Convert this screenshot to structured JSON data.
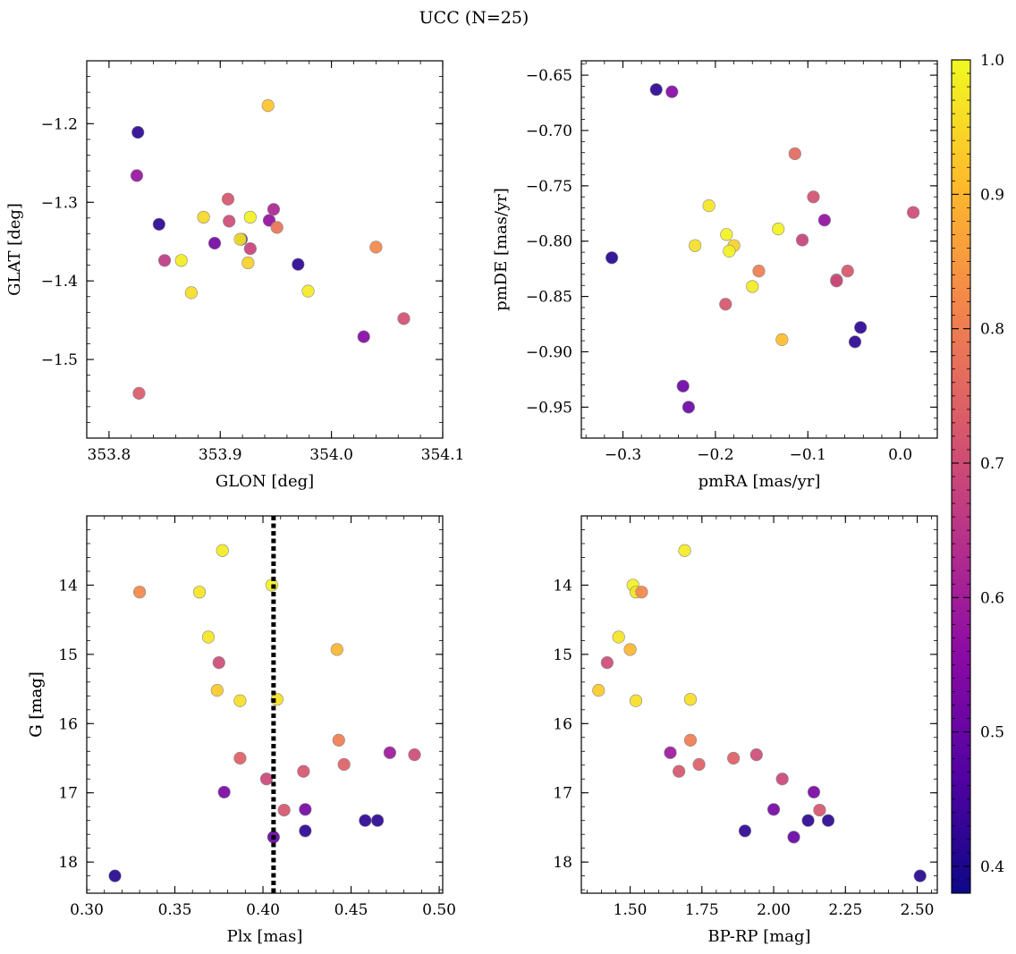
{
  "figure": {
    "title": "UCC (N=25)"
  },
  "colorbar": {
    "range": [
      0.38,
      1.0
    ],
    "ticks": [
      "0.4",
      "0.5",
      "0.6",
      "0.7",
      "0.8",
      "0.9",
      "1.0"
    ],
    "colormap": "plasma"
  },
  "chart_data": [
    {
      "type": "scatter",
      "panel": "top-left",
      "xlabel": "GLON [deg]",
      "ylabel": "GLAT [deg]",
      "xlim": [
        353.78,
        354.1
      ],
      "ylim": [
        -1.6,
        -1.12
      ],
      "xticks": [
        "353.8",
        "353.9",
        "354.0",
        "354.1"
      ],
      "yticks": [
        "−1.2",
        "−1.3",
        "−1.4",
        "−1.5"
      ],
      "points": [
        {
          "x": 353.943,
          "y": -1.177,
          "c": 0.92
        },
        {
          "x": 353.826,
          "y": -1.211,
          "c": 0.42
        },
        {
          "x": 353.825,
          "y": -1.266,
          "c": 0.58
        },
        {
          "x": 353.907,
          "y": -1.296,
          "c": 0.72
        },
        {
          "x": 353.948,
          "y": -1.309,
          "c": 0.62
        },
        {
          "x": 353.885,
          "y": -1.319,
          "c": 0.95
        },
        {
          "x": 353.927,
          "y": -1.319,
          "c": 0.99
        },
        {
          "x": 353.944,
          "y": -1.323,
          "c": 0.57
        },
        {
          "x": 353.908,
          "y": -1.324,
          "c": 0.7
        },
        {
          "x": 353.845,
          "y": -1.328,
          "c": 0.42
        },
        {
          "x": 353.951,
          "y": -1.332,
          "c": 0.78
        },
        {
          "x": 353.919,
          "y": -1.347,
          "c": 0.42
        },
        {
          "x": 353.918,
          "y": -1.347,
          "c": 0.97
        },
        {
          "x": 353.895,
          "y": -1.352,
          "c": 0.52
        },
        {
          "x": 354.04,
          "y": -1.357,
          "c": 0.82
        },
        {
          "x": 353.927,
          "y": -1.359,
          "c": 0.68
        },
        {
          "x": 353.85,
          "y": -1.374,
          "c": 0.66
        },
        {
          "x": 353.865,
          "y": -1.374,
          "c": 0.98
        },
        {
          "x": 353.925,
          "y": -1.377,
          "c": 0.94
        },
        {
          "x": 353.97,
          "y": -1.379,
          "c": 0.42
        },
        {
          "x": 353.979,
          "y": -1.413,
          "c": 0.98
        },
        {
          "x": 353.874,
          "y": -1.415,
          "c": 0.96
        },
        {
          "x": 354.065,
          "y": -1.448,
          "c": 0.71
        },
        {
          "x": 354.029,
          "y": -1.471,
          "c": 0.55
        },
        {
          "x": 353.827,
          "y": -1.543,
          "c": 0.73
        }
      ]
    },
    {
      "type": "scatter",
      "panel": "top-right",
      "xlabel": "pmRA [mas/yr]",
      "ylabel": "pmDE [mas/yr]",
      "xlim": [
        -0.345,
        0.04
      ],
      "ylim": [
        -0.978,
        -0.637
      ],
      "xticks": [
        "−0.3",
        "−0.2",
        "−0.1",
        "0.0"
      ],
      "yticks": [
        "−0.65",
        "−0.70",
        "−0.75",
        "−0.80",
        "−0.85",
        "−0.90",
        "−0.95"
      ],
      "points": [
        {
          "x": -0.264,
          "y": -0.663,
          "c": 0.42
        },
        {
          "x": -0.247,
          "y": -0.665,
          "c": 0.55
        },
        {
          "x": -0.114,
          "y": -0.721,
          "c": 0.76
        },
        {
          "x": -0.094,
          "y": -0.76,
          "c": 0.71
        },
        {
          "x": -0.207,
          "y": -0.768,
          "c": 0.97
        },
        {
          "x": 0.014,
          "y": -0.774,
          "c": 0.7
        },
        {
          "x": -0.082,
          "y": -0.781,
          "c": 0.57
        },
        {
          "x": -0.132,
          "y": -0.789,
          "c": 0.99
        },
        {
          "x": -0.188,
          "y": -0.794,
          "c": 0.99
        },
        {
          "x": -0.106,
          "y": -0.799,
          "c": 0.68
        },
        {
          "x": -0.18,
          "y": -0.804,
          "c": 0.94
        },
        {
          "x": -0.222,
          "y": -0.804,
          "c": 0.96
        },
        {
          "x": -0.185,
          "y": -0.809,
          "c": 0.99
        },
        {
          "x": -0.312,
          "y": -0.815,
          "c": 0.41
        },
        {
          "x": -0.153,
          "y": -0.827,
          "c": 0.8
        },
        {
          "x": -0.057,
          "y": -0.827,
          "c": 0.72
        },
        {
          "x": -0.069,
          "y": -0.835,
          "c": 0.73
        },
        {
          "x": -0.069,
          "y": -0.836,
          "c": 0.69
        },
        {
          "x": -0.16,
          "y": -0.841,
          "c": 0.98
        },
        {
          "x": -0.189,
          "y": -0.857,
          "c": 0.72
        },
        {
          "x": -0.043,
          "y": -0.878,
          "c": 0.42
        },
        {
          "x": -0.128,
          "y": -0.889,
          "c": 0.91
        },
        {
          "x": -0.049,
          "y": -0.891,
          "c": 0.42
        },
        {
          "x": -0.235,
          "y": -0.931,
          "c": 0.51
        },
        {
          "x": -0.229,
          "y": -0.95,
          "c": 0.51
        }
      ]
    },
    {
      "type": "scatter",
      "panel": "bottom-left",
      "xlabel": "Plx [mas]",
      "ylabel": "G [mag]",
      "xlim": [
        0.3,
        0.502
      ],
      "ylim": [
        18.45,
        13.0
      ],
      "y_inverted": true,
      "vline": 0.406,
      "xticks": [
        "0.30",
        "0.35",
        "0.40",
        "0.45",
        "0.50"
      ],
      "yticks": [
        "14",
        "15",
        "16",
        "17",
        "18"
      ],
      "points": [
        {
          "x": 0.377,
          "y": 13.5,
          "c": 0.98
        },
        {
          "x": 0.405,
          "y": 14.0,
          "c": 0.99
        },
        {
          "x": 0.33,
          "y": 14.1,
          "c": 0.82
        },
        {
          "x": 0.364,
          "y": 14.1,
          "c": 0.97
        },
        {
          "x": 0.369,
          "y": 14.75,
          "c": 0.97
        },
        {
          "x": 0.442,
          "y": 14.93,
          "c": 0.9
        },
        {
          "x": 0.375,
          "y": 15.12,
          "c": 0.7
        },
        {
          "x": 0.374,
          "y": 15.52,
          "c": 0.93
        },
        {
          "x": 0.387,
          "y": 15.67,
          "c": 0.96
        },
        {
          "x": 0.408,
          "y": 15.65,
          "c": 0.96
        },
        {
          "x": 0.443,
          "y": 16.24,
          "c": 0.8
        },
        {
          "x": 0.472,
          "y": 16.42,
          "c": 0.59
        },
        {
          "x": 0.486,
          "y": 16.45,
          "c": 0.7
        },
        {
          "x": 0.387,
          "y": 16.5,
          "c": 0.74
        },
        {
          "x": 0.446,
          "y": 16.59,
          "c": 0.74
        },
        {
          "x": 0.423,
          "y": 16.69,
          "c": 0.72
        },
        {
          "x": 0.402,
          "y": 16.8,
          "c": 0.69
        },
        {
          "x": 0.378,
          "y": 16.99,
          "c": 0.53
        },
        {
          "x": 0.412,
          "y": 17.25,
          "c": 0.72
        },
        {
          "x": 0.424,
          "y": 17.24,
          "c": 0.52
        },
        {
          "x": 0.458,
          "y": 17.4,
          "c": 0.42
        },
        {
          "x": 0.465,
          "y": 17.4,
          "c": 0.42
        },
        {
          "x": 0.424,
          "y": 17.55,
          "c": 0.42
        },
        {
          "x": 0.406,
          "y": 17.64,
          "c": 0.5
        },
        {
          "x": 0.316,
          "y": 18.2,
          "c": 0.41
        }
      ]
    },
    {
      "type": "scatter",
      "panel": "bottom-right",
      "xlabel": "BP-RP [mag]",
      "ylabel": "G [mag]",
      "xlim": [
        1.33,
        2.57
      ],
      "ylim": [
        18.45,
        13.0
      ],
      "y_inverted": true,
      "xticks": [
        "1.50",
        "1.75",
        "2.00",
        "2.25",
        "2.50"
      ],
      "yticks": [
        "14",
        "15",
        "16",
        "17",
        "18"
      ],
      "points": [
        {
          "x": 1.69,
          "y": 13.5,
          "c": 0.98
        },
        {
          "x": 1.51,
          "y": 14.0,
          "c": 0.99
        },
        {
          "x": 1.52,
          "y": 14.1,
          "c": 0.97
        },
        {
          "x": 1.54,
          "y": 14.1,
          "c": 0.82
        },
        {
          "x": 1.46,
          "y": 14.75,
          "c": 0.97
        },
        {
          "x": 1.5,
          "y": 14.93,
          "c": 0.9
        },
        {
          "x": 1.42,
          "y": 15.12,
          "c": 0.7
        },
        {
          "x": 1.39,
          "y": 15.52,
          "c": 0.93
        },
        {
          "x": 1.52,
          "y": 15.67,
          "c": 0.96
        },
        {
          "x": 1.71,
          "y": 15.65,
          "c": 0.96
        },
        {
          "x": 1.71,
          "y": 16.24,
          "c": 0.8
        },
        {
          "x": 1.64,
          "y": 16.42,
          "c": 0.59
        },
        {
          "x": 1.94,
          "y": 16.45,
          "c": 0.7
        },
        {
          "x": 1.86,
          "y": 16.5,
          "c": 0.74
        },
        {
          "x": 1.74,
          "y": 16.59,
          "c": 0.74
        },
        {
          "x": 1.67,
          "y": 16.69,
          "c": 0.72
        },
        {
          "x": 2.03,
          "y": 16.8,
          "c": 0.69
        },
        {
          "x": 2.14,
          "y": 16.99,
          "c": 0.53
        },
        {
          "x": 2.16,
          "y": 17.25,
          "c": 0.72
        },
        {
          "x": 2.0,
          "y": 17.24,
          "c": 0.52
        },
        {
          "x": 2.12,
          "y": 17.4,
          "c": 0.42
        },
        {
          "x": 2.19,
          "y": 17.4,
          "c": 0.42
        },
        {
          "x": 1.9,
          "y": 17.55,
          "c": 0.42
        },
        {
          "x": 2.07,
          "y": 17.64,
          "c": 0.5
        },
        {
          "x": 2.51,
          "y": 18.2,
          "c": 0.41
        }
      ]
    }
  ]
}
